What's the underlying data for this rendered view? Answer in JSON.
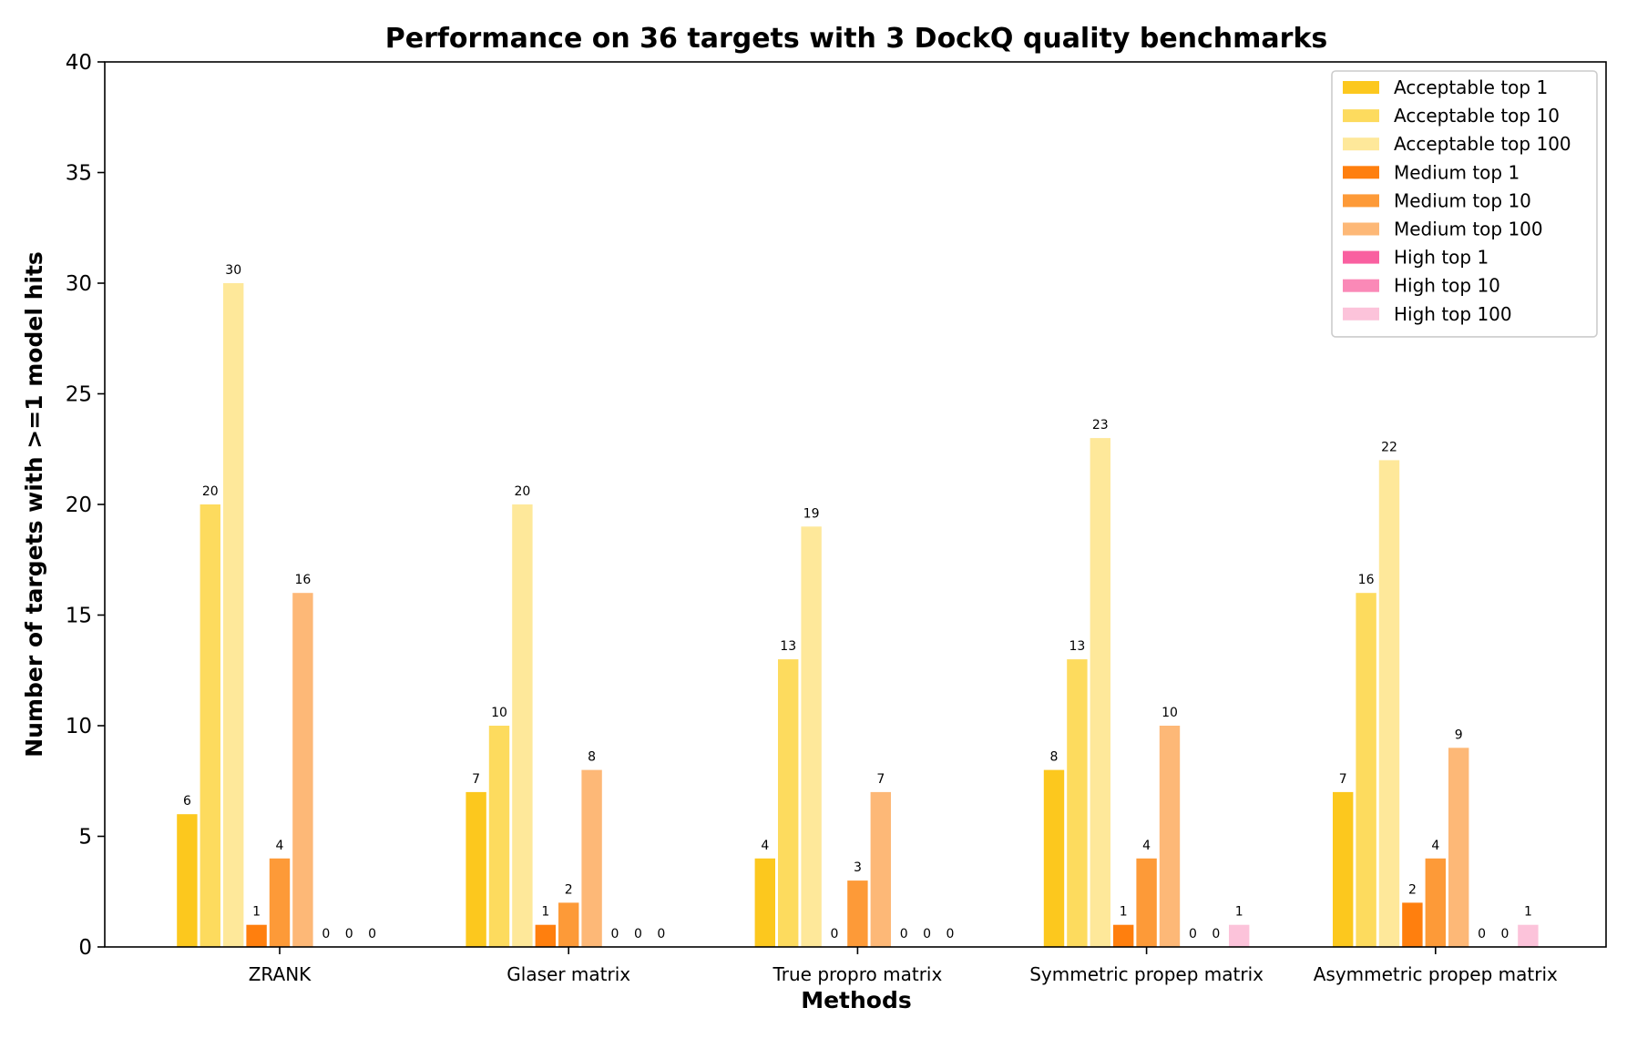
{
  "chart_data": {
    "type": "bar",
    "title": "Performance on 36 targets with 3 DockQ quality benchmarks",
    "xlabel": "Methods",
    "ylabel": "Number of targets with >=1 model hits",
    "ylim": [
      0,
      40
    ],
    "yticks": [
      0,
      5,
      10,
      15,
      20,
      25,
      30,
      35,
      40
    ],
    "grid": false,
    "legend_position": "top-right",
    "categories": [
      "ZRANK",
      "Glaser matrix",
      "True propro matrix",
      "Symmetric propep matrix",
      "Asymmetric propep matrix"
    ],
    "series": [
      {
        "name": "Acceptable top 1",
        "color": "#fcc81e",
        "values": [
          6,
          7,
          4,
          8,
          7
        ]
      },
      {
        "name": "Acceptable top 10",
        "color": "#fddb5e",
        "values": [
          20,
          10,
          13,
          13,
          16
        ]
      },
      {
        "name": "Acceptable top 100",
        "color": "#fee89a",
        "values": [
          30,
          20,
          19,
          23,
          22
        ]
      },
      {
        "name": "Medium top 1",
        "color": "#ff7f0e",
        "values": [
          1,
          1,
          0,
          1,
          2
        ]
      },
      {
        "name": "Medium top 10",
        "color": "#fd9a38",
        "values": [
          4,
          2,
          3,
          4,
          4
        ]
      },
      {
        "name": "Medium top 100",
        "color": "#fdb877",
        "values": [
          16,
          8,
          7,
          10,
          9
        ]
      },
      {
        "name": "High top 1",
        "color": "#f960a0",
        "values": [
          0,
          0,
          0,
          0,
          0
        ]
      },
      {
        "name": "High top 10",
        "color": "#fa89b7",
        "values": [
          0,
          0,
          0,
          0,
          0
        ]
      },
      {
        "name": "High top 100",
        "color": "#fcc3da",
        "values": [
          0,
          0,
          0,
          1,
          1
        ]
      }
    ]
  }
}
